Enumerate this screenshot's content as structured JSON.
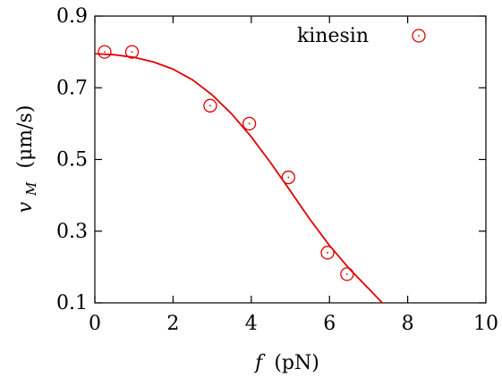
{
  "chart_data": {
    "type": "scatter",
    "title": "",
    "xlabel_var": "f",
    "xlabel_unit": "(pN)",
    "ylabel_var": "v",
    "ylabel_sub": "M",
    "ylabel_unit": "(μm/s)",
    "xlim": [
      0,
      10
    ],
    "ylim": [
      0.1,
      0.9
    ],
    "xticks": [
      "0",
      "2",
      "4",
      "6",
      "8",
      "10"
    ],
    "yticks": [
      "0.1",
      "0.3",
      "0.5",
      "0.7",
      "0.9"
    ],
    "xtick_values": [
      0,
      2,
      4,
      6,
      8,
      10
    ],
    "ytick_values": [
      0.1,
      0.3,
      0.5,
      0.7,
      0.9
    ],
    "grid": false,
    "legend_position": "top-right",
    "series": [
      {
        "name": "kinesin",
        "kind": "points",
        "color": "#e00000",
        "x": [
          0.25,
          0.95,
          2.95,
          3.95,
          4.95,
          5.95,
          6.45
        ],
        "y": [
          0.8,
          0.8,
          0.65,
          0.6,
          0.45,
          0.24,
          0.18
        ]
      },
      {
        "kind": "line",
        "color": "#e00000",
        "x": [
          0.0,
          0.5,
          1.0,
          1.5,
          2.0,
          2.5,
          3.0,
          3.5,
          4.0,
          4.5,
          5.0,
          5.5,
          6.0,
          6.5,
          7.0,
          7.35
        ],
        "y": [
          0.795,
          0.792,
          0.785,
          0.772,
          0.752,
          0.722,
          0.68,
          0.627,
          0.563,
          0.49,
          0.412,
          0.333,
          0.26,
          0.196,
          0.14,
          0.1
        ]
      }
    ]
  }
}
